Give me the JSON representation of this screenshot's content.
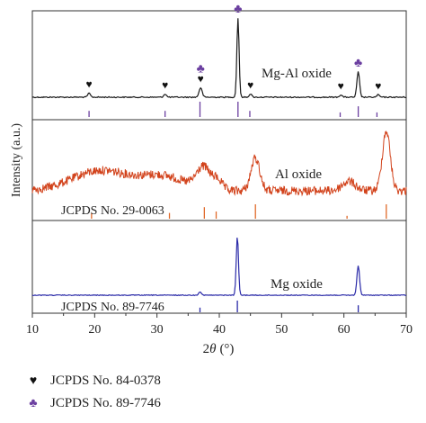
{
  "chart_data": {
    "type": "line",
    "xlabel_prefix": "2",
    "xlabel_theta": "θ",
    "xlabel_unit": "(°)",
    "ylabel": "Intensity (a.u.)",
    "xlim": [
      10,
      70
    ],
    "xticks": [
      "10",
      "20",
      "30",
      "40",
      "50",
      "60",
      "70"
    ],
    "panels": [
      {
        "label": "Mg-Al oxide",
        "line_color": "#1a1a1a",
        "ref_color": "#6b3fa0",
        "ref_label": "",
        "peaks": [
          {
            "x": 19.1,
            "h": 0.05,
            "w": 0.3
          },
          {
            "x": 31.3,
            "h": 0.04,
            "w": 0.3
          },
          {
            "x": 37.0,
            "h": 0.12,
            "w": 0.35
          },
          {
            "x": 43.0,
            "h": 1.0,
            "w": 0.25
          },
          {
            "x": 45.0,
            "h": 0.04,
            "w": 0.3
          },
          {
            "x": 59.5,
            "h": 0.03,
            "w": 0.3
          },
          {
            "x": 62.3,
            "h": 0.32,
            "w": 0.3
          },
          {
            "x": 65.5,
            "h": 0.03,
            "w": 0.3
          }
        ],
        "ref_sticks": [
          {
            "x": 19.1,
            "h": 0.4,
            "color": "#6b3fa0"
          },
          {
            "x": 31.3,
            "h": 0.4,
            "color": "#6b3fa0"
          },
          {
            "x": 36.9,
            "h": 1.0,
            "color": "#6b3fa0"
          },
          {
            "x": 43.0,
            "h": 1.0,
            "color": "#6b3fa0"
          },
          {
            "x": 44.9,
            "h": 0.4,
            "color": "#6b3fa0"
          },
          {
            "x": 59.4,
            "h": 0.3,
            "color": "#6b3fa0"
          },
          {
            "x": 62.3,
            "h": 0.7,
            "color": "#6b3fa0"
          },
          {
            "x": 65.3,
            "h": 0.3,
            "color": "#6b3fa0"
          }
        ],
        "markers": [
          {
            "x": 19.1,
            "symbol": "♥",
            "color": "#111111"
          },
          {
            "x": 31.3,
            "symbol": "♥",
            "color": "#111111"
          },
          {
            "x": 37.0,
            "symbol": "♥",
            "color": "#111111"
          },
          {
            "x": 37.0,
            "symbol": "♣",
            "color": "#6b3fa0"
          },
          {
            "x": 43.0,
            "symbol": "♣",
            "color": "#6b3fa0"
          },
          {
            "x": 45.0,
            "symbol": "♥",
            "color": "#111111"
          },
          {
            "x": 59.5,
            "symbol": "♥",
            "color": "#111111"
          },
          {
            "x": 62.3,
            "symbol": "♣",
            "color": "#6b3fa0"
          },
          {
            "x": 65.5,
            "symbol": "♥",
            "color": "#111111"
          }
        ]
      },
      {
        "label": "Al oxide",
        "line_color": "#d2431c",
        "ref_color": "#e0692a",
        "ref_label": "JCPDS No. 29-0063",
        "peaks": [
          {
            "x": 37.5,
            "h": 0.35,
            "w": 1.6
          },
          {
            "x": 39.8,
            "h": 0.15,
            "w": 1.0
          },
          {
            "x": 45.8,
            "h": 0.52,
            "w": 1.0
          },
          {
            "x": 60.8,
            "h": 0.15,
            "w": 1.5
          },
          {
            "x": 66.8,
            "h": 0.95,
            "w": 0.9
          }
        ],
        "broad_humps": [
          {
            "x": 21.0,
            "h": 0.32,
            "w": 6.5
          },
          {
            "x": 31.0,
            "h": 0.22,
            "w": 5.0
          }
        ],
        "ref_sticks": [
          {
            "x": 19.5,
            "h": 0.4,
            "color": "#e0692a"
          },
          {
            "x": 32.0,
            "h": 0.4,
            "color": "#e0692a"
          },
          {
            "x": 37.6,
            "h": 0.8,
            "color": "#e0692a"
          },
          {
            "x": 39.5,
            "h": 0.5,
            "color": "#e0692a"
          },
          {
            "x": 45.8,
            "h": 1.0,
            "color": "#e0692a"
          },
          {
            "x": 60.5,
            "h": 0.2,
            "color": "#e0692a"
          },
          {
            "x": 66.8,
            "h": 1.0,
            "color": "#e0692a"
          }
        ]
      },
      {
        "label": "Mg oxide",
        "line_color": "#2a2aa8",
        "ref_color": "#2a2aa8",
        "ref_label": "JCPDS No. 89-7746",
        "peaks": [
          {
            "x": 36.9,
            "h": 0.06,
            "w": 0.3
          },
          {
            "x": 42.9,
            "h": 1.0,
            "w": 0.25
          },
          {
            "x": 62.3,
            "h": 0.5,
            "w": 0.3
          }
        ],
        "ref_sticks": [
          {
            "x": 36.9,
            "h": 0.4,
            "color": "#2a2aa8"
          },
          {
            "x": 42.9,
            "h": 1.0,
            "color": "#2a2aa8"
          },
          {
            "x": 62.3,
            "h": 0.6,
            "color": "#2a2aa8"
          }
        ]
      }
    ]
  },
  "legend": [
    {
      "symbol": "♥",
      "color": "#111111",
      "text": "JCPDS No. 84-0378"
    },
    {
      "symbol": "♣",
      "color": "#6b3fa0",
      "text": "JCPDS No. 89-7746"
    }
  ]
}
